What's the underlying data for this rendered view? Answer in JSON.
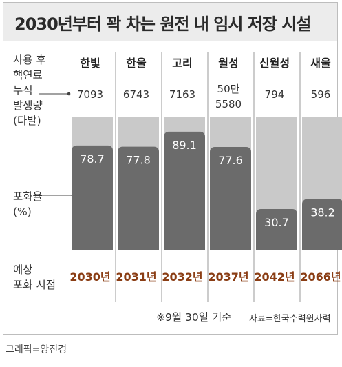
{
  "title": "2030년부터 꽉 차는 원전 내 임시 저장 시설",
  "row_labels": {
    "used_fuel": [
      "사용 후",
      "핵연료",
      "누적",
      "발생량",
      "(다발)"
    ],
    "saturation": [
      "포화율",
      "(%)"
    ],
    "saturation_date": [
      "예상",
      "포화 시점"
    ]
  },
  "plants": [
    {
      "name": "한빛",
      "used_fuel": "7093",
      "saturation": "78.7",
      "date": "2030년"
    },
    {
      "name": "한울",
      "used_fuel": "6743",
      "saturation": "77.8",
      "date": "2031년"
    },
    {
      "name": "고리",
      "used_fuel": "7163",
      "saturation": "89.1",
      "date": "2032년"
    },
    {
      "name": "월성",
      "used_fuel": [
        "50만",
        "5580"
      ],
      "saturation": "77.6",
      "date": "2037년"
    },
    {
      "name": "신월성",
      "used_fuel": "794",
      "saturation": "30.7",
      "date": "2042년"
    },
    {
      "name": "새울",
      "used_fuel": "596",
      "saturation": "38.2",
      "date": "2066년"
    }
  ],
  "footnote": "※9월 30일 기준",
  "source": "자료=한국수력원자력",
  "credit": "그래픽=양진경",
  "colors": {
    "bar_track": "#c9c9c9",
    "bar_fill": "#6b6b6b",
    "date_text": "#8a3d14",
    "title_band": "#ececec"
  },
  "chart_data": {
    "type": "bar",
    "categories": [
      "한빛",
      "한울",
      "고리",
      "월성",
      "신월성",
      "새울"
    ],
    "values": [
      78.7,
      77.8,
      89.1,
      77.6,
      30.7,
      38.2
    ],
    "ylim": [
      0,
      100
    ],
    "ylabel": "포화율 (%)",
    "grid": false
  }
}
